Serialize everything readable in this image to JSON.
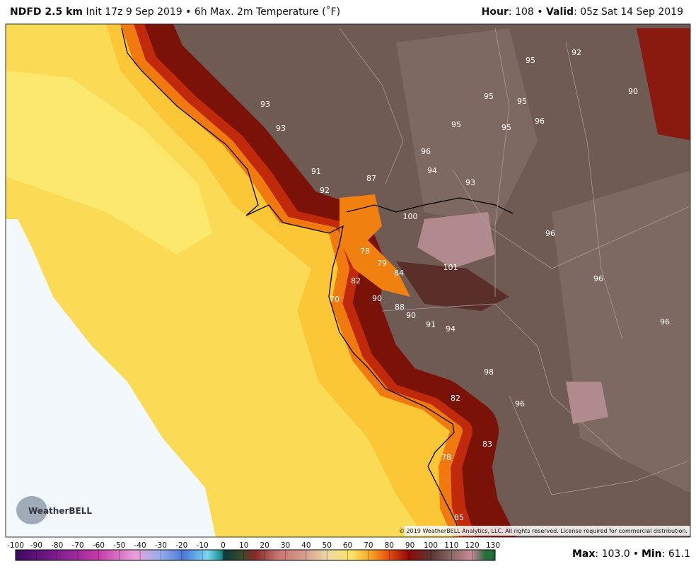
{
  "header": {
    "model": "NDFD 2.5 km",
    "init": "Init 17z 9 Sep 2019",
    "separator": "•",
    "product": "6h Max. 2m Temperature (˚F)",
    "hour_label": "Hour",
    "hour": ": 108",
    "valid_label": "Valid",
    "valid": ": 05z Sat 14 Sep 2019"
  },
  "map": {
    "labels": [
      93,
      93,
      91,
      92,
      87,
      96,
      94,
      93,
      95,
      95,
      95,
      95,
      96,
      95,
      92,
      90,
      100,
      96,
      101,
      96,
      78,
      79,
      84,
      82,
      70,
      90,
      88,
      90,
      91,
      94,
      96,
      98,
      82,
      96,
      83,
      78,
      85
    ],
    "copyright": "© 2019 WeatherBELL Analytics, LLC. All rights reserved. License required for commercial distribution.",
    "logo": "WeatherBELL"
  },
  "colorbar": {
    "ticks": [
      -100,
      -90,
      -80,
      -70,
      -60,
      -50,
      -40,
      -30,
      -20,
      -10,
      0,
      10,
      20,
      30,
      40,
      50,
      60,
      70,
      80,
      90,
      100,
      110,
      120,
      130
    ]
  },
  "footer": {
    "max_label": "Max",
    "max": "103.0",
    "separator": "•",
    "min_label": "Min",
    "min": "61.1"
  }
}
